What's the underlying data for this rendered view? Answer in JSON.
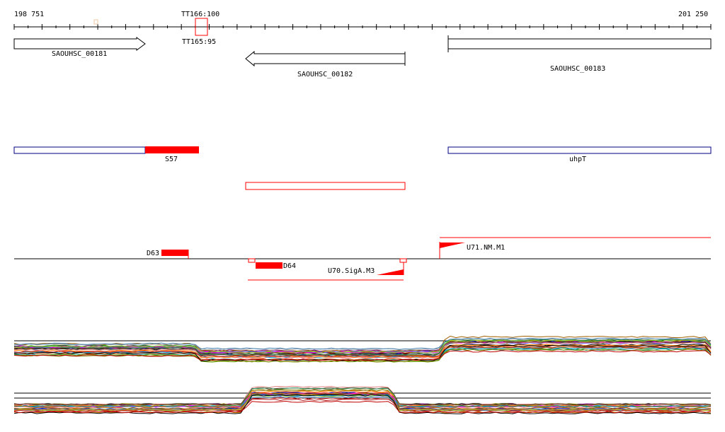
{
  "ruler": {
    "start_label": "198 751",
    "end_label": "201 250",
    "marker_label": "TT166:100",
    "marker_sub_label": "TT165:95"
  },
  "genes": [
    {
      "name": "SAOUHSC_00181",
      "strand": "+"
    },
    {
      "name": "SAOUHSC_00182",
      "strand": "-"
    },
    {
      "name": "SAOUHSC_00183",
      "strand": "+"
    }
  ],
  "annotation_track": {
    "items": [
      {
        "label": "S57",
        "style": "filled"
      },
      {
        "label": "uhpT",
        "style": "outline"
      }
    ]
  },
  "features": {
    "d63": "D63",
    "d64": "D64",
    "u70": "U70.SigA.M3",
    "u71": "U71.NM.M1"
  },
  "colors": {
    "accent": "#ff0000",
    "gene_outline": "#000000",
    "annotation_outline": "#000080",
    "baseline": "#000000"
  },
  "expression_tracks": [
    {
      "name": "upper-panel"
    },
    {
      "name": "lower-panel"
    }
  ]
}
